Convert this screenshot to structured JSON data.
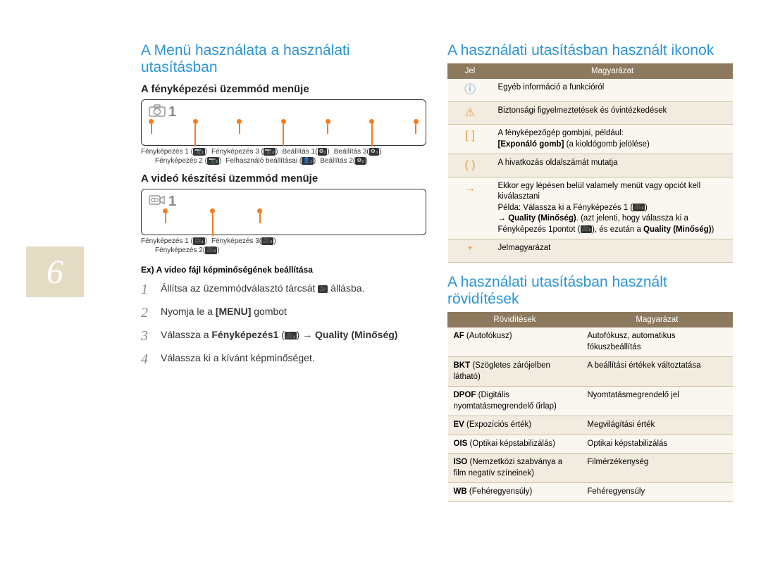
{
  "page_number": "6",
  "left": {
    "title": "A Menü használata a használati utasításban",
    "sec1_title": "A fényképezési üzemmód menüje",
    "sec2_title": "A videó készítési üzemmód menüje",
    "diagram_number": "1",
    "photo_labels": [
      "Fényképezés 1",
      "Fényképezés 3",
      "Beállítás 1",
      "Beállítás 3",
      "Fényképezés 2",
      "Felhasználó beállításai",
      "Beállítás 2"
    ],
    "photo_icons": [
      "📷₁",
      "📷₃",
      "⚙₁",
      "⚙₃",
      "📷₂",
      "👤₁",
      "⚙₂"
    ],
    "video_labels": [
      "Fényképezés 1",
      "Fényképezés 3",
      "Fényképezés 2"
    ],
    "video_icons": [
      "🎥₁",
      "🎥₃",
      "🎥₂"
    ],
    "example_label": "Ex) A video fájl képminőségének beállítása",
    "steps": [
      {
        "num": "1",
        "html": "Állítsa az üzemmódválasztó tárcsát <span class='mini-icon'>🎥</span> állásba."
      },
      {
        "num": "2",
        "html": "Nyomja le a <b>[MENU]</b> gombot"
      },
      {
        "num": "3",
        "html": "Válassza a <b>Fényképezés1</b> (<span class='mini-icon'>🎥₁</span>) → <b>Quality (Minőség)</b>"
      },
      {
        "num": "4",
        "html": "Válassza ki a kívánt képminőséget."
      }
    ]
  },
  "right": {
    "icons_title": "A használati utasításban használt ikonok",
    "icons_table": {
      "headers": [
        "Jel",
        "Magyarázat"
      ],
      "rows": [
        {
          "icon": "ⓘ",
          "cls": "jel-info",
          "text": "Egyéb információ a funkcióról"
        },
        {
          "icon": "⚠",
          "cls": "jel-warn",
          "text": "Biztonsági figyelmeztetések és óvintézkedések"
        },
        {
          "icon": "[  ]",
          "cls": "jel-bracket",
          "html": "A fényképezőgép gombjai, például:<br><b>[Exponáló gomb]</b> (a kioldógomb jelölése)"
        },
        {
          "icon": "(  )",
          "cls": "jel-paren",
          "text": "A hivatkozás oldalszámát mutatja"
        },
        {
          "icon": "→",
          "cls": "jel-arrow",
          "html": "Ekkor egy lépésen belül valamely menüt vagy opciót kell kiválasztani<br>Példa: Válassza ki a Fényképezés 1 (<span class='mini-icon'>🎥₁</span>)<br>→ <b>Quality (Minőség)</b>. (azt jelenti, hogy válassza ki a Fényképezés 1pontot (<span class='mini-icon'>🎥₁</span>), és ezután a <b>Quality (Minőség)</b>)"
        },
        {
          "icon": "*",
          "cls": "jel-star",
          "text": "Jelmagyarázat"
        }
      ]
    },
    "abbr_title": "A használati utasításban használt rövidítések",
    "abbr_table": {
      "headers": [
        "Rövidítések",
        "Magyarázat"
      ],
      "rows": [
        {
          "abbr_html": "<b>AF</b> (Autofókusz)",
          "def": "Autofókusz, automatikus fókuszbeállítás"
        },
        {
          "abbr_html": "<b>BKT</b> (Szögletes zárójelben látható)",
          "def": "A beállítási értékek változtatása"
        },
        {
          "abbr_html": "<b>DPOF</b> (Digitális nyomtatásmegrendelő űrlap)",
          "def": "Nyomtatásmegrendelő jel"
        },
        {
          "abbr_html": "<b>EV</b> (Expozíciós érték)",
          "def": "Megvilágítási érték"
        },
        {
          "abbr_html": "<b>OIS</b> (Optikai képstabilizálás)",
          "def": "Optikai képstabilizálás"
        },
        {
          "abbr_html": "<b>ISO</b> (Nemzetközi szabványa a film negatív színeinek)",
          "def": "Filmérzékenység"
        },
        {
          "abbr_html": "<b>WB</b> (Fehéregyensúly)",
          "def": "Fehéregyensúly"
        }
      ]
    }
  },
  "colors": {
    "accent_blue": "#2a94d6",
    "table_header": "#8d7a5e",
    "row_alt": "#f2ece0",
    "orange": "#f57c1f",
    "page_bg": "#e4dcc5"
  }
}
